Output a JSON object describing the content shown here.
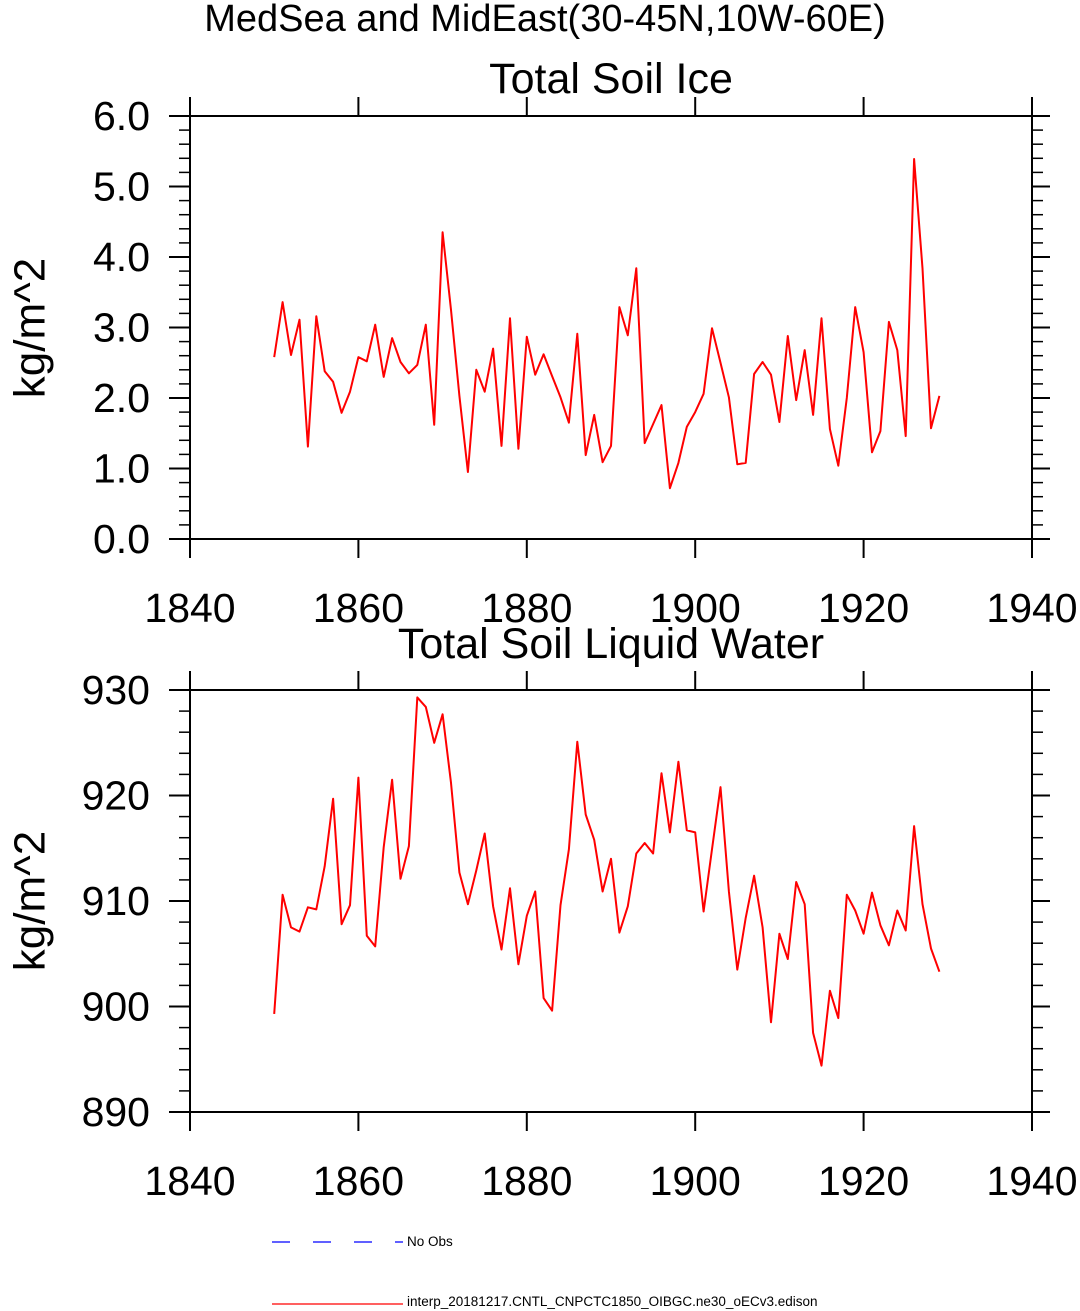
{
  "figure_title": "MedSea and MidEast(30-45N,10W-60E)",
  "chart_data": [
    {
      "type": "line",
      "title": "Total Soil Ice",
      "ylabel": "kg/m^2",
      "xlim": [
        1840,
        1940
      ],
      "ylim": [
        0,
        6
      ],
      "xticks": [
        1840,
        1860,
        1880,
        1900,
        1920,
        1940
      ],
      "xtick_labels": [
        "1840",
        "1860",
        "1880",
        "1900",
        "1920",
        "1940"
      ],
      "yticks": [
        0,
        1,
        2,
        3,
        4,
        5,
        6
      ],
      "ytick_labels": [
        "0.0",
        "1.0",
        "2.0",
        "3.0",
        "4.0",
        "5.0",
        "6.0"
      ],
      "y_minor_step": 0.2,
      "grid": false,
      "x": [
        1850,
        1851,
        1852,
        1853,
        1854,
        1855,
        1856,
        1857,
        1858,
        1859,
        1860,
        1861,
        1862,
        1863,
        1864,
        1865,
        1866,
        1867,
        1868,
        1869,
        1870,
        1871,
        1872,
        1873,
        1874,
        1875,
        1876,
        1877,
        1878,
        1879,
        1880,
        1881,
        1882,
        1883,
        1884,
        1885,
        1886,
        1887,
        1888,
        1889,
        1890,
        1891,
        1892,
        1893,
        1894,
        1895,
        1896,
        1897,
        1898,
        1899,
        1900,
        1901,
        1902,
        1903,
        1904,
        1905,
        1906,
        1907,
        1908,
        1909,
        1910,
        1911,
        1912,
        1913,
        1914,
        1915,
        1916,
        1917,
        1918,
        1919,
        1920,
        1921,
        1922,
        1923,
        1924,
        1925,
        1926,
        1927,
        1928,
        1929
      ],
      "series": [
        {
          "legend_item": 1,
          "color": "#ff0000",
          "values": [
            2.58,
            3.36,
            2.61,
            3.11,
            1.31,
            3.16,
            2.38,
            2.23,
            1.79,
            2.09,
            2.58,
            2.52,
            3.04,
            2.3,
            2.85,
            2.51,
            2.35,
            2.47,
            3.04,
            1.62,
            4.35,
            3.25,
            2.03,
            0.95,
            2.4,
            2.09,
            2.7,
            1.32,
            3.13,
            1.28,
            2.87,
            2.33,
            2.62,
            2.31,
            2.01,
            1.65,
            2.91,
            1.19,
            1.76,
            1.09,
            1.32,
            3.29,
            2.89,
            3.84,
            1.36,
            1.63,
            1.9,
            0.72,
            1.08,
            1.59,
            1.8,
            2.06,
            2.99,
            2.5,
            2.01,
            1.06,
            1.08,
            2.34,
            2.51,
            2.33,
            1.66,
            2.88,
            1.97,
            2.68,
            1.76,
            3.13,
            1.56,
            1.04,
            2.0,
            3.29,
            2.65,
            1.23,
            1.53,
            3.08,
            2.68,
            1.46,
            5.39,
            3.84,
            1.57,
            2.03
          ]
        }
      ]
    },
    {
      "type": "line",
      "title": "Total Soil Liquid Water",
      "ylabel": "kg/m^2",
      "xlim": [
        1840,
        1940
      ],
      "ylim": [
        890,
        930
      ],
      "xticks": [
        1840,
        1860,
        1880,
        1900,
        1920,
        1940
      ],
      "xtick_labels": [
        "1840",
        "1860",
        "1880",
        "1900",
        "1920",
        "1940"
      ],
      "yticks": [
        890,
        900,
        910,
        920,
        930
      ],
      "ytick_labels": [
        "890",
        "900",
        "910",
        "920",
        "930"
      ],
      "y_minor_step": 2,
      "grid": false,
      "x": [
        1850,
        1851,
        1852,
        1853,
        1854,
        1855,
        1856,
        1857,
        1858,
        1859,
        1860,
        1861,
        1862,
        1863,
        1864,
        1865,
        1866,
        1867,
        1868,
        1869,
        1870,
        1871,
        1872,
        1873,
        1874,
        1875,
        1876,
        1877,
        1878,
        1879,
        1880,
        1881,
        1882,
        1883,
        1884,
        1885,
        1886,
        1887,
        1888,
        1889,
        1890,
        1891,
        1892,
        1893,
        1894,
        1895,
        1896,
        1897,
        1898,
        1899,
        1900,
        1901,
        1902,
        1903,
        1904,
        1905,
        1906,
        1907,
        1908,
        1909,
        1910,
        1911,
        1912,
        1913,
        1914,
        1915,
        1916,
        1917,
        1918,
        1919,
        1920,
        1921,
        1922,
        1923,
        1924,
        1925,
        1926,
        1927,
        1928,
        1929
      ],
      "series": [
        {
          "legend_item": 1,
          "color": "#ff0000",
          "values": [
            899.3,
            910.6,
            907.5,
            907.1,
            909.4,
            909.2,
            913.3,
            919.7,
            907.8,
            909.6,
            921.7,
            906.7,
            905.7,
            915.1,
            921.5,
            912.1,
            915.2,
            929.3,
            928.4,
            925.0,
            927.7,
            921.2,
            912.7,
            909.7,
            912.9,
            916.4,
            909.5,
            905.4,
            911.2,
            904.0,
            908.6,
            910.9,
            900.8,
            899.6,
            909.6,
            914.9,
            925.1,
            918.2,
            915.8,
            910.9,
            914.0,
            907.0,
            909.5,
            914.5,
            915.5,
            914.5,
            922.1,
            916.5,
            923.2,
            916.7,
            916.5,
            909.0,
            914.9,
            920.8,
            910.9,
            903.5,
            908.4,
            912.4,
            907.5,
            898.5,
            906.9,
            904.5,
            911.8,
            909.7,
            897.5,
            894.4,
            901.5,
            898.9,
            910.6,
            909.1,
            906.9,
            910.8,
            907.7,
            905.8,
            909.1,
            907.2,
            917.1,
            909.7,
            905.5,
            903.3
          ]
        }
      ]
    }
  ],
  "legend": {
    "placement": "bottom",
    "items": [
      {
        "label": "No Obs",
        "color": "#0000ff",
        "dashed": true
      },
      {
        "label": "interp_20181217.CNTL_CNPCTC1850_OIBGC.ne30_oECv3.edison",
        "color": "#ff0000",
        "dashed": false
      }
    ]
  }
}
